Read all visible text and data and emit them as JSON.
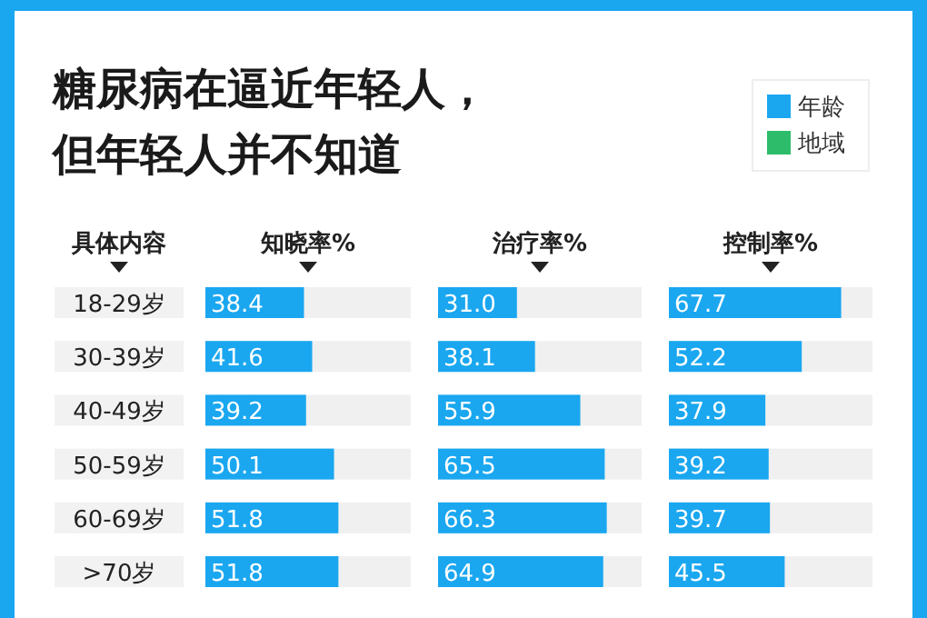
{
  "chart_data": [
    {
      "type": "bar",
      "orientation": "horizontal",
      "title": "糖尿病在逼近年轻人，但年轻人并不知道",
      "ylabel": "具体内容",
      "xlabel": "知晓率%",
      "categories": [
        "18-29岁",
        "30-39岁",
        "40-49岁",
        "50-59岁",
        "60-69岁",
        ">70岁"
      ],
      "series": [
        {
          "color": "#1aa7f0",
          "values": [
            38.4,
            41.6,
            39.2,
            50.1,
            51.8,
            51.8
          ],
          "value_labels": [
            "38.4",
            "41.6",
            "39.2",
            "50.1",
            "51.8",
            "51.8"
          ]
        }
      ],
      "xlim": [
        0,
        80
      ],
      "tick_labels": "y"
    },
    {
      "type": "bar",
      "orientation": "horizontal",
      "xlabel": "治疗率%",
      "categories": [
        null,
        null,
        null,
        null,
        null,
        null
      ],
      "series": [
        {
          "color": "#1aa7f0",
          "values": [
            31.0,
            38.1,
            55.9,
            65.5,
            66.3,
            64.9
          ],
          "value_labels": [
            "31.0",
            "38.1",
            "55.9",
            "65.5",
            "66.3",
            "64.9"
          ]
        }
      ],
      "xlim": [
        0,
        80
      ],
      "tick_labels": false
    },
    {
      "type": "bar",
      "orientation": "horizontal",
      "xlabel": "控制率%",
      "categories": [
        null,
        null,
        null,
        null,
        null,
        null
      ],
      "series": [
        {
          "name": "年龄",
          "color": "#1aa7f0",
          "values": [
            67.7,
            52.2,
            37.9,
            39.2,
            39.7,
            45.5
          ],
          "value_labels": [
            "67.7",
            "52.2",
            "37.9",
            "39.2",
            "39.7",
            "45.5"
          ]
        },
        {
          "name": "地域",
          "color": "#2dbd6a",
          "values": [
            null,
            null,
            null,
            null,
            null,
            null
          ]
        }
      ],
      "xlim": [
        0,
        80
      ],
      "tick_labels": false,
      "legend": "top right"
    }
  ]
}
